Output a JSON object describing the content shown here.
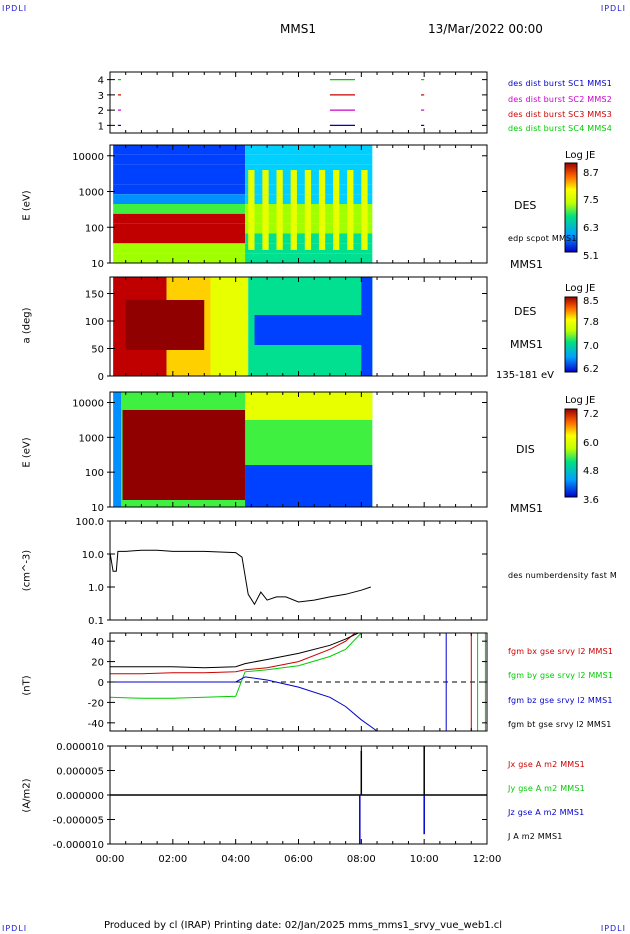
{
  "corner_tags": {
    "tl": "IPDLI",
    "tr": "IPDLI",
    "bl": "IPDLI",
    "br": "IPDLI"
  },
  "header": {
    "mission": "MMS1",
    "datetime": "13/Mar/2022 00:00"
  },
  "footer": "Produced by cl (IRAP)   Printing date: 02/Jan/2025   mms_mms1_srvy_vue_web1.cl",
  "colors": {
    "blue": "#0000cc",
    "magenta": "#cc00cc",
    "red": "#cc0000",
    "green": "#00cc00",
    "black": "#000000"
  },
  "panels": {
    "availability": {
      "yticks": [
        "4",
        "3",
        "2",
        "1"
      ],
      "legend": [
        {
          "text": "des dist burst SC1 MMS1",
          "color": "#0000cc"
        },
        {
          "text": "des dist burst SC2 MMS2",
          "color": "#cc00cc"
        },
        {
          "text": "des dist burst SC3 MMS3",
          "color": "#cc0000"
        },
        {
          "text": "des dist burst SC4 MMS4",
          "color": "#00cc00"
        }
      ]
    },
    "des_energy": {
      "ylabel": "E (eV)",
      "yticks": [
        "10000",
        "1000",
        "100",
        "10"
      ],
      "species": "DES",
      "extra": "edp scpot MMS1",
      "sat": "MMS1",
      "colorbar": {
        "title": "Log JE",
        "ticks": [
          "8.7",
          "7.5",
          "6.3",
          "5.1"
        ]
      }
    },
    "des_pitch": {
      "ylabel": "a (deg)",
      "yticks": [
        "150",
        "100",
        "50",
        "0"
      ],
      "species": "DES",
      "sat": "MMS1",
      "energy_range": "135-181 eV",
      "colorbar": {
        "title": "Log JE",
        "ticks": [
          "8.5",
          "7.8",
          "7.0",
          "6.2"
        ]
      }
    },
    "dis_energy": {
      "ylabel": "E (eV)",
      "yticks": [
        "10000",
        "1000",
        "100",
        "10"
      ],
      "species": "DIS",
      "sat": "MMS1",
      "colorbar": {
        "title": "Log JE",
        "ticks": [
          "7.2",
          "6.0",
          "4.8",
          "3.6"
        ]
      }
    },
    "density": {
      "ylabel": "(cm^-3)",
      "yticks": [
        "100.0",
        "10.0",
        "1.0",
        "0.1"
      ],
      "legend": "des numberdensity fast M"
    },
    "bfield": {
      "ylabel": "(nT)",
      "yticks": [
        "40",
        "20",
        "0",
        "-20",
        "-40"
      ],
      "legend": [
        {
          "text": "fgm bx gse srvy l2 MMS1",
          "color": "#cc0000"
        },
        {
          "text": "fgm by gse srvy l2 MMS1",
          "color": "#00cc00"
        },
        {
          "text": "fgm bz gse srvy l2 MMS1",
          "color": "#0000cc"
        },
        {
          "text": "fgm bt gse srvy l2 MMS1",
          "color": "#000000"
        }
      ]
    },
    "current": {
      "ylabel": "(A/m2)",
      "yticks": [
        "0.000010",
        "0.000005",
        "0.000000",
        "-0.000005",
        "-0.000010"
      ],
      "legend": [
        {
          "text": "Jx gse A m2 MMS1",
          "color": "#cc0000"
        },
        {
          "text": "Jy gse A m2 MMS1",
          "color": "#00cc00"
        },
        {
          "text": "Jz gse A m2 MMS1",
          "color": "#0000cc"
        },
        {
          "text": "J A m2 MMS1",
          "color": "#000000"
        }
      ]
    }
  },
  "xticks": [
    "00:00",
    "02:00",
    "04:00",
    "06:00",
    "08:00",
    "10:00",
    "12:00"
  ],
  "chart_data": [
    {
      "type": "line",
      "name": "availability",
      "x_range_hours": [
        0,
        12
      ],
      "ylim": [
        0.5,
        4.5
      ],
      "series": [
        {
          "name": "des dist burst SC1 MMS1",
          "segments_hours": [
            [
              0.25,
              0.35
            ],
            [
              7.0,
              7.8
            ],
            [
              9.9,
              10.0
            ]
          ],
          "y": 1
        },
        {
          "name": "des dist burst SC2 MMS2",
          "segments_hours": [
            [
              0.25,
              0.35
            ],
            [
              7.0,
              7.8
            ],
            [
              9.9,
              10.0
            ]
          ],
          "y": 2
        },
        {
          "name": "des dist burst SC3 MMS3",
          "segments_hours": [
            [
              0.25,
              0.35
            ],
            [
              7.0,
              7.8
            ],
            [
              9.9,
              10.0
            ]
          ],
          "y": 3
        },
        {
          "name": "des dist burst SC4 MMS4",
          "segments_hours": [
            [
              0.25,
              0.35
            ],
            [
              7.0,
              7.8
            ],
            [
              9.9,
              10.0
            ]
          ],
          "y": 4
        }
      ]
    },
    {
      "type": "heatmap",
      "name": "DES energy spectrogram",
      "y_scale": "log",
      "ylim": [
        10,
        20000
      ],
      "zlim": [
        5.1,
        8.7
      ],
      "data_end_hours": 8.35
    },
    {
      "type": "heatmap",
      "name": "DES pitch angle distribution",
      "ylim": [
        0,
        180
      ],
      "zlim": [
        6.2,
        8.5
      ],
      "data_end_hours": 8.35
    },
    {
      "type": "heatmap",
      "name": "DIS energy spectrogram",
      "y_scale": "log",
      "ylim": [
        10,
        20000
      ],
      "zlim": [
        3.6,
        7.2
      ],
      "data_end_hours": 8.35
    },
    {
      "type": "line",
      "name": "des numberdensity fast",
      "y_scale": "log",
      "ylim": [
        0.1,
        100
      ],
      "x": [
        0.0,
        0.1,
        0.2,
        0.25,
        0.5,
        1,
        1.5,
        2,
        2.5,
        3,
        3.5,
        4,
        4.2,
        4.4,
        4.6,
        4.8,
        5,
        5.3,
        5.6,
        6,
        6.5,
        7,
        7.5,
        8,
        8.3
      ],
      "y": [
        11,
        3,
        3,
        12,
        12,
        13,
        13,
        12,
        12,
        12,
        11.5,
        11,
        8,
        0.6,
        0.3,
        0.7,
        0.4,
        0.5,
        0.5,
        0.35,
        0.4,
        0.5,
        0.6,
        0.8,
        1.0
      ]
    },
    {
      "type": "line",
      "name": "magnetic field",
      "ylim": [
        -48,
        48
      ],
      "series": [
        {
          "name": "fgm bx gse srvy l2 MMS1",
          "x": [
            0,
            1,
            2,
            3,
            4,
            4.3,
            5,
            6,
            7,
            7.5,
            7.8
          ],
          "y": [
            8,
            8,
            9,
            9,
            10,
            12,
            14,
            20,
            32,
            40,
            48
          ]
        },
        {
          "name": "fgm by gse srvy l2 MMS1",
          "x": [
            0,
            1,
            2,
            3,
            4,
            4.3,
            5,
            6,
            7,
            7.5,
            8
          ],
          "y": [
            -15,
            -16,
            -16,
            -15,
            -14,
            10,
            12,
            16,
            25,
            32,
            48
          ]
        },
        {
          "name": "fgm bz gse srvy l2 MMS1",
          "x": [
            0,
            1,
            2,
            3,
            4,
            4.3,
            5,
            6,
            7,
            7.5,
            8,
            8.5
          ],
          "y": [
            0,
            0,
            0,
            0,
            0,
            5,
            2,
            -5,
            -15,
            -24,
            -37,
            -48
          ]
        },
        {
          "name": "fgm bt gse srvy l2 MMS1",
          "x": [
            0,
            1,
            2,
            3,
            4,
            4.3,
            5,
            6,
            7,
            7.5,
            7.9
          ],
          "y": [
            15,
            15,
            15,
            14,
            15,
            18,
            22,
            28,
            36,
            42,
            48
          ]
        }
      ]
    },
    {
      "type": "line",
      "name": "current density",
      "ylim": [
        -1e-05,
        1e-05
      ],
      "series": [
        {
          "name": "J A m2 MMS1",
          "spikes_hours": [
            [
              8.0,
              9e-06
            ],
            [
              10.0,
              1e-05
            ]
          ]
        },
        {
          "name": "Jz gse A m2 MMS1",
          "spikes_hours": [
            [
              7.95,
              -1e-05
            ],
            [
              10.0,
              -8e-06
            ]
          ]
        }
      ]
    }
  ]
}
